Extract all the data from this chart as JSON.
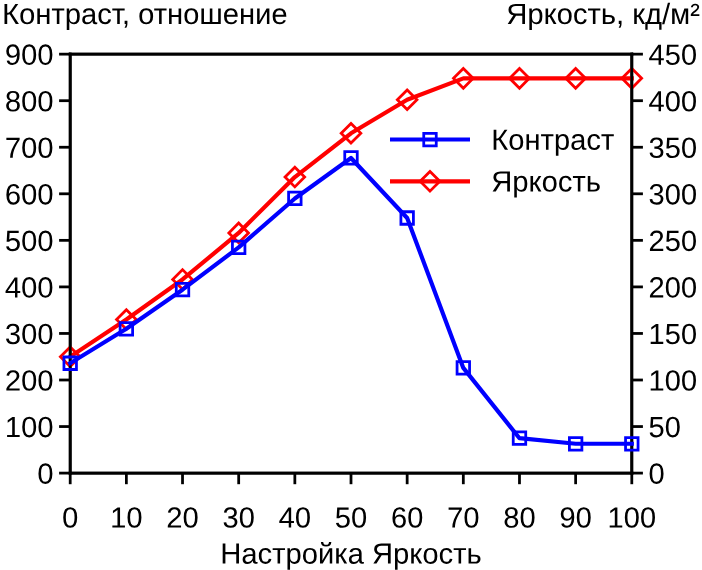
{
  "chart_data": {
    "type": "line",
    "xlabel": "Настройка Яркость",
    "ylabel": "Контраст, отношение",
    "y2label": "Яркость, кд/м²",
    "x": [
      0,
      10,
      20,
      30,
      40,
      50,
      60,
      70,
      80,
      90,
      100
    ],
    "series": [
      {
        "name": "Контраст",
        "color": "#0000ff",
        "marker": "square",
        "values": [
          236,
          310,
          394,
          485,
          590,
          677,
          548,
          226,
          75,
          63,
          63
        ]
      },
      {
        "name": "Яркость",
        "color": "#ff0000",
        "marker": "diamond",
        "axis": "y2",
        "values": [
          125,
          165,
          208,
          258,
          318,
          365,
          401,
          424,
          424,
          424,
          424
        ]
      }
    ],
    "xlim": [
      0,
      100
    ],
    "xticks": [
      0,
      10,
      20,
      30,
      40,
      50,
      60,
      70,
      80,
      90,
      100
    ],
    "ylim": [
      0,
      900
    ],
    "yticks": [
      0,
      100,
      200,
      300,
      400,
      500,
      600,
      700,
      800,
      900
    ],
    "y2lim": [
      0,
      450
    ],
    "y2ticks": [
      0,
      50,
      100,
      150,
      200,
      250,
      300,
      350,
      400,
      450
    ],
    "grid": false,
    "legend": "right",
    "line_style": "solid"
  }
}
